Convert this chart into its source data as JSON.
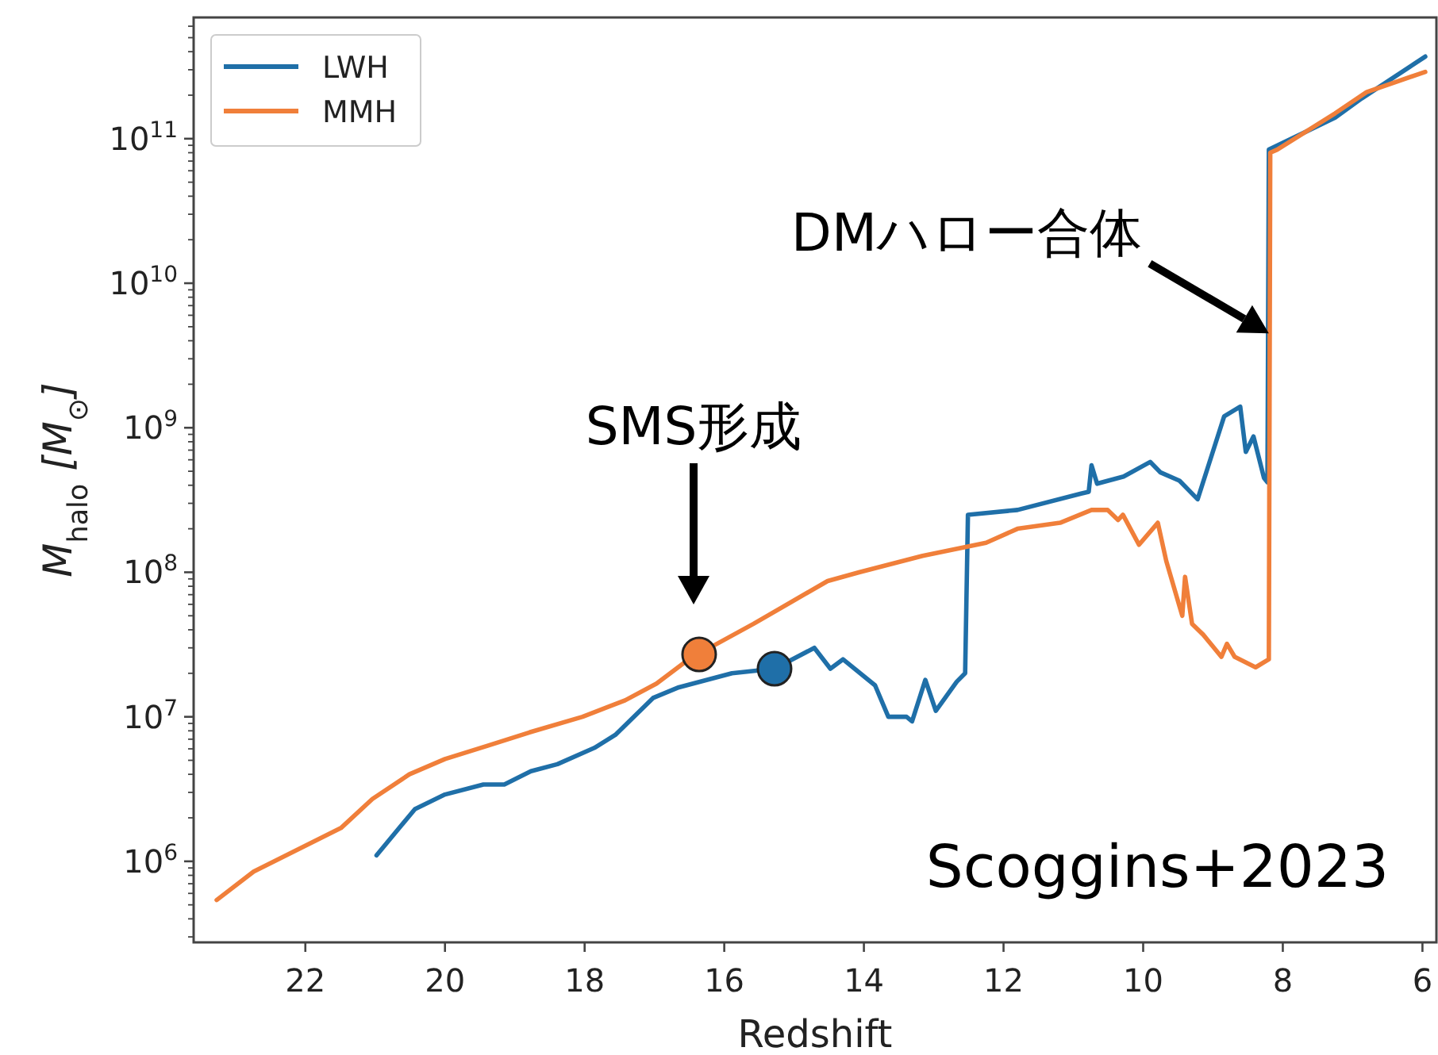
{
  "chart_data": {
    "type": "line",
    "xlabel": "Redshift",
    "ylabel": "M$_{halo}$ [M$_{⊙}$]",
    "log": "y",
    "legend": "top left",
    "xlim": [
      23.6,
      5.8
    ],
    "ylim": [
      275000,
      690000000000
    ],
    "xticks": [
      22,
      20,
      18,
      16,
      14,
      12,
      10,
      8,
      6
    ],
    "yticks": [
      {
        "value": 1000000,
        "label": "10$^{6}$"
      },
      {
        "value": 10000000,
        "label": "10$^{7}$"
      },
      {
        "value": 100000000,
        "label": "10$^{8}$"
      },
      {
        "value": 1000000000,
        "label": "10$^{9}$"
      },
      {
        "value": 10000000000,
        "label": "10$^{10}$"
      },
      {
        "value": 100000000000,
        "label": "10$^{11}$"
      },
      {
        "value": 300000,
        "label": null
      },
      {
        "value": 400000,
        "label": null
      },
      {
        "value": 500000,
        "label": null
      },
      {
        "value": 600000,
        "label": null
      },
      {
        "value": 700000,
        "label": null
      },
      {
        "value": 800000,
        "label": null
      },
      {
        "value": 900000,
        "label": null
      },
      {
        "value": 2000000,
        "label": null
      },
      {
        "value": 3000000,
        "label": null
      },
      {
        "value": 4000000,
        "label": null
      },
      {
        "value": 5000000,
        "label": null
      },
      {
        "value": 6000000,
        "label": null
      },
      {
        "value": 7000000,
        "label": null
      },
      {
        "value": 8000000,
        "label": null
      },
      {
        "value": 9000000,
        "label": null
      },
      {
        "value": 20000000,
        "label": null
      },
      {
        "value": 30000000,
        "label": null
      },
      {
        "value": 40000000,
        "label": null
      },
      {
        "value": 50000000,
        "label": null
      },
      {
        "value": 60000000,
        "label": null
      },
      {
        "value": 70000000,
        "label": null
      },
      {
        "value": 80000000,
        "label": null
      },
      {
        "value": 90000000,
        "label": null
      },
      {
        "value": 200000000,
        "label": null
      },
      {
        "value": 300000000,
        "label": null
      },
      {
        "value": 400000000,
        "label": null
      },
      {
        "value": 500000000,
        "label": null
      },
      {
        "value": 600000000,
        "label": null
      },
      {
        "value": 700000000,
        "label": null
      },
      {
        "value": 800000000,
        "label": null
      },
      {
        "value": 900000000,
        "label": null
      },
      {
        "value": 2000000000,
        "label": null
      },
      {
        "value": 3000000000,
        "label": null
      },
      {
        "value": 4000000000,
        "label": null
      },
      {
        "value": 5000000000,
        "label": null
      },
      {
        "value": 6000000000,
        "label": null
      },
      {
        "value": 7000000000,
        "label": null
      },
      {
        "value": 8000000000,
        "label": null
      },
      {
        "value": 9000000000,
        "label": null
      },
      {
        "value": 20000000000,
        "label": null
      },
      {
        "value": 30000000000,
        "label": null
      },
      {
        "value": 40000000000,
        "label": null
      },
      {
        "value": 50000000000,
        "label": null
      },
      {
        "value": 60000000000,
        "label": null
      },
      {
        "value": 70000000000,
        "label": null
      },
      {
        "value": 80000000000,
        "label": null
      },
      {
        "value": 90000000000,
        "label": null
      },
      {
        "value": 200000000000,
        "label": null
      },
      {
        "value": 300000000000,
        "label": null
      },
      {
        "value": 400000000000,
        "label": null
      },
      {
        "value": 500000000000,
        "label": null
      },
      {
        "value": 600000000000,
        "label": null
      }
    ],
    "series": [
      {
        "name": "LWH",
        "color": "#1f6fa8",
        "x": [
          20.98,
          20.43,
          20.0,
          19.45,
          19.15,
          18.77,
          18.39,
          17.86,
          17.56,
          17.02,
          16.65,
          15.89,
          15.28,
          14.71,
          14.48,
          14.3,
          13.84,
          13.65,
          13.39,
          13.31,
          13.12,
          12.97,
          12.67,
          12.55,
          12.51,
          11.8,
          10.89,
          10.78,
          10.74,
          10.66,
          10.28,
          9.9,
          9.75,
          9.48,
          9.22,
          8.84,
          8.61,
          8.53,
          8.42,
          8.27,
          8.22,
          8.2,
          7.25,
          6.87,
          5.96
        ],
        "values": [
          1100000,
          2300000,
          2900000,
          3400000,
          3400000,
          4200000,
          4700000,
          6100000,
          7500000,
          13500000,
          16000000,
          20000000,
          21500000,
          30000000,
          21500000,
          25000000,
          16500000,
          10000000,
          10000000,
          9300000,
          18000000,
          11000000,
          17500000,
          20000000,
          250000000,
          270000000,
          350000000,
          360000000,
          550000000,
          410000000,
          460000000,
          580000000,
          490000000,
          430000000,
          320000000,
          1200000000,
          1400000000,
          680000000,
          870000000,
          450000000,
          420000000,
          84000000000,
          140000000000,
          190000000000,
          370000000000
        ]
      },
      {
        "name": "MMH",
        "color": "#f07f3a",
        "x": [
          23.27,
          22.74,
          21.49,
          21.04,
          20.51,
          20.0,
          19.39,
          18.79,
          18.03,
          17.42,
          16.97,
          16.51,
          15.58,
          14.52,
          14.07,
          13.16,
          12.25,
          11.8,
          11.19,
          10.74,
          10.51,
          10.36,
          10.29,
          10.06,
          9.79,
          9.67,
          9.44,
          9.4,
          9.3,
          9.14,
          8.88,
          8.8,
          8.69,
          8.39,
          8.2,
          8.18,
          8.08,
          7.25,
          6.8,
          5.96
        ],
        "values": [
          540000,
          850000,
          1700000,
          2700000,
          4000000,
          5100000,
          6300000,
          7800000,
          10000000,
          13000000,
          17000000,
          25000000,
          44000000,
          87000000,
          100000000,
          130000000,
          160000000,
          200000000,
          220000000,
          270000000,
          270000000,
          230000000,
          250000000,
          155000000,
          220000000,
          120000000,
          50000000,
          93000000,
          44000000,
          37000000,
          26000000,
          32000000,
          26000000,
          22000000,
          25000000,
          80000000000,
          84000000000,
          150000000000,
          210000000000,
          290000000000
        ]
      },
      {
        "type": "scatter",
        "marker": "circle",
        "color": "#f07f3a",
        "x": [
          16.36
        ],
        "values": [
          27000000
        ]
      },
      {
        "type": "scatter",
        "marker": "circle",
        "color": "#1f6fa8",
        "x": [
          15.28
        ],
        "values": [
          21500000
        ]
      }
    ],
    "annotations": [
      "SMS形成",
      {
        "text": "DMハロー合体",
        "x": 8.2,
        "y": 4500000000
      },
      "Scoggins+2023"
    ]
  }
}
